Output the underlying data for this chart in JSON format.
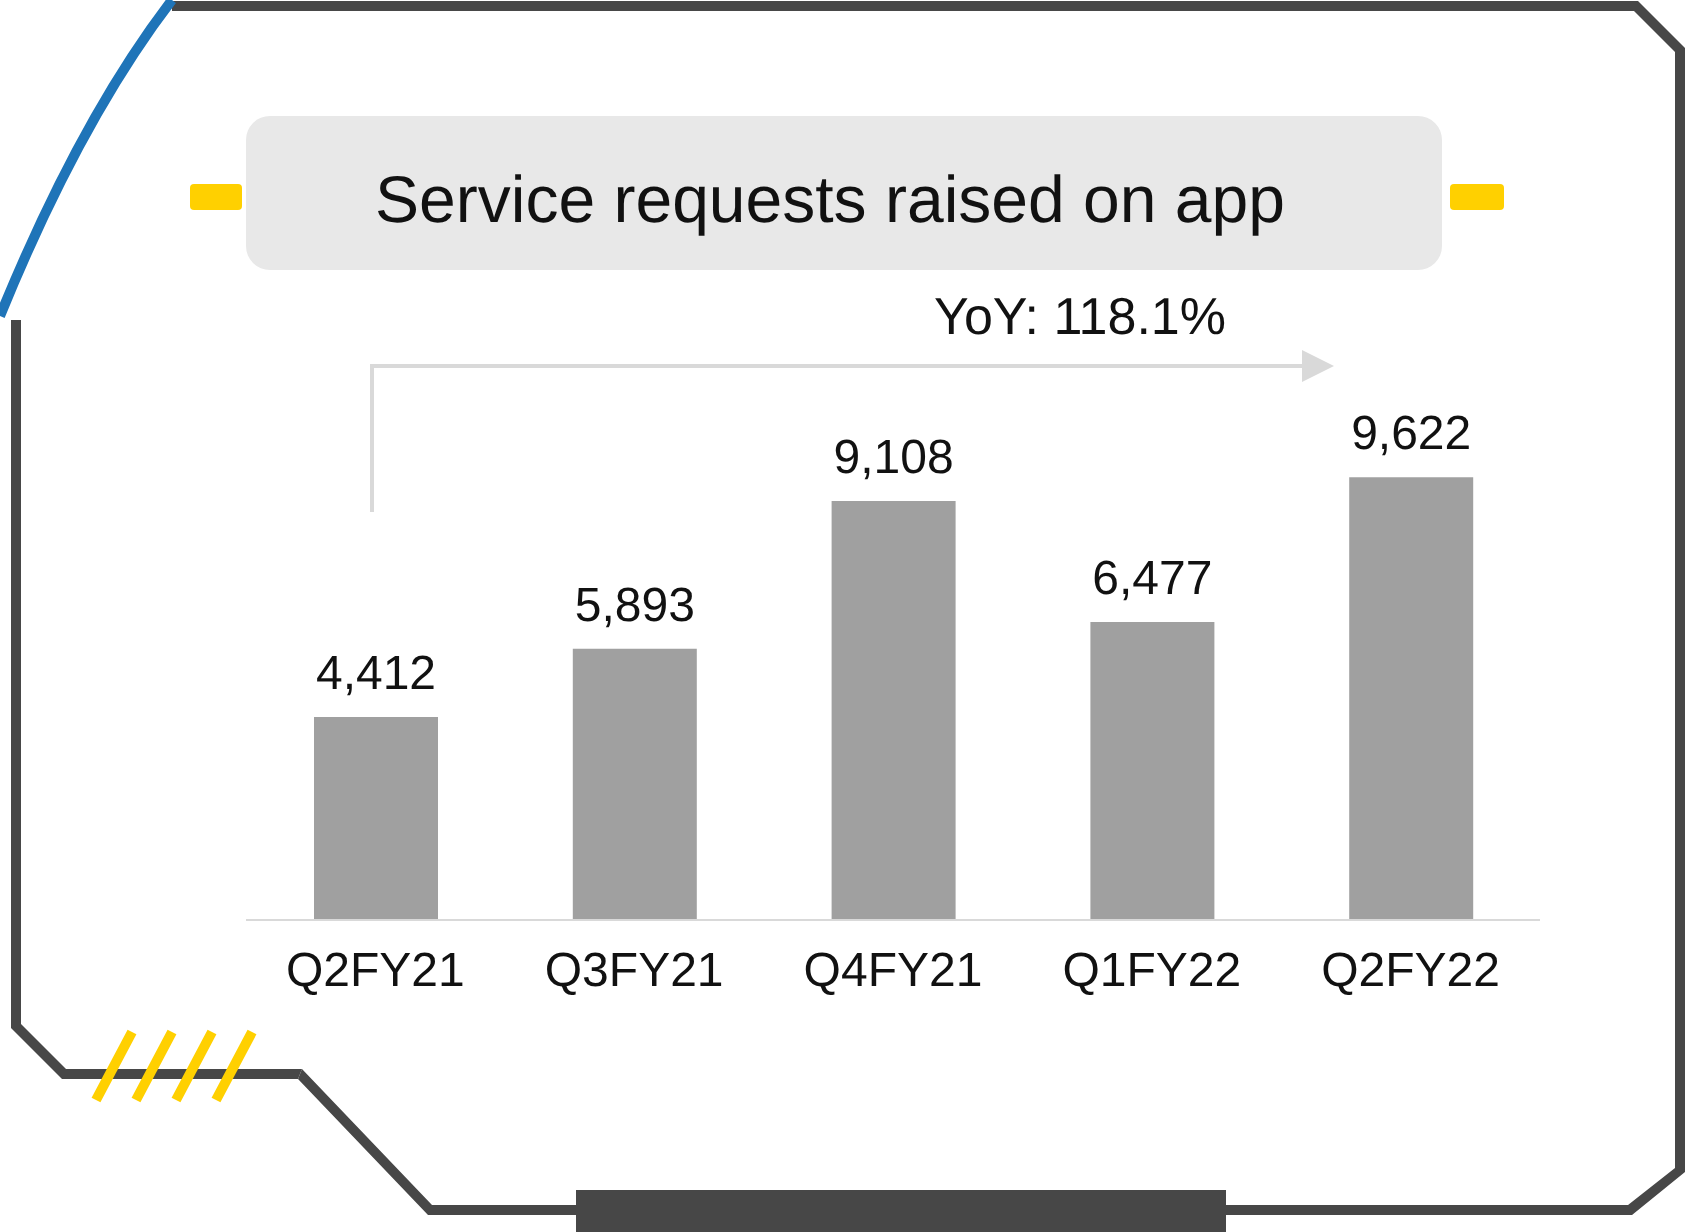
{
  "chart_data": {
    "type": "bar",
    "title": "Service requests raised on app",
    "categories": [
      "Q2FY21",
      "Q3FY21",
      "Q4FY21",
      "Q1FY22",
      "Q2FY22"
    ],
    "values": [
      4412,
      5893,
      9108,
      6477,
      9622
    ],
    "color": "#a0a0a0",
    "value_labels": [
      "4,412",
      "5,893",
      "9,108",
      "6,477",
      "9,622"
    ],
    "annotations": [
      "YoY: 118.1%"
    ],
    "legend": false,
    "grid": false
  }
}
